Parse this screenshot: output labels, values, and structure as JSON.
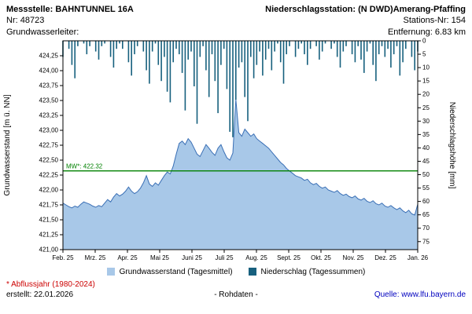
{
  "header": {
    "left": {
      "title": "Messstelle: BAHNTUNNEL 16A",
      "line2": "Nr: 48723",
      "line3": "Grundwasserleiter:"
    },
    "right": {
      "title": "Niederschlagsstation: (N DWD)Amerang-Pfaffing",
      "line2": "Stations-Nr: 154",
      "line3": "Entfernung: 6.83 km"
    }
  },
  "legend": {
    "groundwater": "Grundwasserstand (Tagesmittel)",
    "precipitation": "Niederschlag (Tagessummen)"
  },
  "footer": {
    "note": "* Abflussjahr (1980-2024)",
    "created": "erstellt:  22.01.2026",
    "center": "- Rohdaten -",
    "source": "Quelle: www.lfu.bayern.de"
  },
  "colors": {
    "groundwater_fill": "#a8c8e8",
    "groundwater_line": "#3a6fb5",
    "precipitation_bar": "#17607e",
    "mean_line": "#008000",
    "note_red": "#cc0000",
    "source_blue": "#0000bf"
  },
  "chart_data": {
    "type": "area+bar",
    "x_ticks": [
      "Feb. 25",
      "Mrz. 25",
      "Apr. 25",
      "Mai 25",
      "Juni 25",
      "Juli 25",
      "Aug. 25",
      "Sept. 25",
      "Okt. 25",
      "Nov. 25",
      "Dez. 25",
      "Jan. 26"
    ],
    "left_axis": {
      "label": "Grundwasserstand [m ü. NN]",
      "min": 421.0,
      "max": 424.5,
      "tick_values": [
        421.0,
        421.25,
        421.5,
        421.75,
        422.0,
        422.25,
        422.5,
        422.75,
        423.0,
        423.25,
        423.5,
        423.75,
        424.0,
        424.25
      ],
      "tick_labels": [
        "421,00",
        "421,25",
        "421,50",
        "421,75",
        "422,00",
        "422,25",
        "422,50",
        "422,75",
        "423,00",
        "423,25",
        "423,50",
        "423,75",
        "424,00",
        "424,25"
      ]
    },
    "right_axis": {
      "label": "Niederschlagshöhe [mm]",
      "min": 0,
      "max": 78,
      "tick_values": [
        0,
        5,
        10,
        15,
        20,
        25,
        30,
        35,
        40,
        45,
        50,
        55,
        60,
        65,
        70,
        75
      ],
      "tick_labels": [
        "0",
        "5",
        "10",
        "15",
        "20",
        "25",
        "30",
        "35",
        "40",
        "45",
        "50",
        "55",
        "60",
        "65",
        "70",
        "75"
      ]
    },
    "mean_line": {
      "value": 422.32,
      "label": "MW*: 422.32",
      "color": "#008000"
    },
    "groundwater": {
      "name": "Grundwasserstand (Tagesmittel)",
      "color_fill": "#a8c8e8",
      "color_line": "#3a6fb5",
      "values": [
        421.78,
        421.75,
        421.72,
        421.7,
        421.73,
        421.71,
        421.76,
        421.8,
        421.78,
        421.76,
        421.73,
        421.71,
        421.74,
        421.72,
        421.78,
        421.84,
        421.8,
        421.88,
        421.94,
        421.9,
        421.93,
        421.98,
        422.05,
        421.98,
        421.94,
        421.97,
        422.03,
        422.12,
        422.24,
        422.1,
        422.06,
        422.12,
        422.08,
        422.16,
        422.24,
        422.3,
        422.27,
        422.4,
        422.6,
        422.78,
        422.82,
        422.76,
        422.86,
        422.8,
        422.7,
        422.6,
        422.56,
        422.66,
        422.76,
        422.7,
        422.63,
        422.58,
        422.7,
        422.76,
        422.64,
        422.54,
        422.5,
        422.62,
        423.52,
        422.96,
        422.9,
        423.02,
        422.96,
        422.9,
        422.94,
        422.86,
        422.82,
        422.78,
        422.74,
        422.7,
        422.64,
        422.58,
        422.52,
        422.46,
        422.42,
        422.36,
        422.32,
        422.28,
        422.24,
        422.22,
        422.2,
        422.16,
        422.18,
        422.12,
        422.09,
        422.11,
        422.06,
        422.03,
        422.05,
        422.0,
        421.98,
        421.96,
        421.99,
        421.94,
        421.91,
        421.93,
        421.89,
        421.87,
        421.9,
        421.85,
        421.83,
        421.86,
        421.81,
        421.79,
        421.82,
        421.77,
        421.75,
        421.78,
        421.73,
        421.71,
        421.74,
        421.7,
        421.67,
        421.7,
        421.65,
        421.62,
        421.66,
        421.6,
        421.58,
        421.76
      ]
    },
    "precipitation": {
      "name": "Niederschlag (Tagessummen)",
      "color": "#17607e",
      "values": [
        6,
        0,
        3,
        9,
        14,
        2,
        0,
        1,
        5,
        2,
        0,
        4,
        7,
        2,
        1,
        0,
        6,
        10,
        3,
        1,
        3,
        0,
        8,
        13,
        5,
        2,
        0,
        4,
        11,
        16,
        4,
        1,
        9,
        15,
        6,
        19,
        23,
        8,
        3,
        5,
        12,
        26,
        7,
        4,
        17,
        31,
        6,
        2,
        11,
        21,
        5,
        15,
        27,
        9,
        3,
        18,
        34,
        36,
        22,
        10,
        8,
        21,
        30,
        6,
        14,
        9,
        4,
        13,
        7,
        3,
        11,
        4,
        1,
        8,
        16,
        5,
        2,
        0,
        6,
        3,
        1,
        5,
        9,
        3,
        0,
        2,
        7,
        4,
        1,
        0,
        3,
        1,
        6,
        10,
        4,
        2,
        0,
        5,
        8,
        2,
        7,
        12,
        4,
        1,
        9,
        15,
        5,
        2,
        6,
        3,
        10,
        5,
        2,
        13,
        8,
        3,
        0,
        6,
        11,
        4
      ]
    }
  }
}
